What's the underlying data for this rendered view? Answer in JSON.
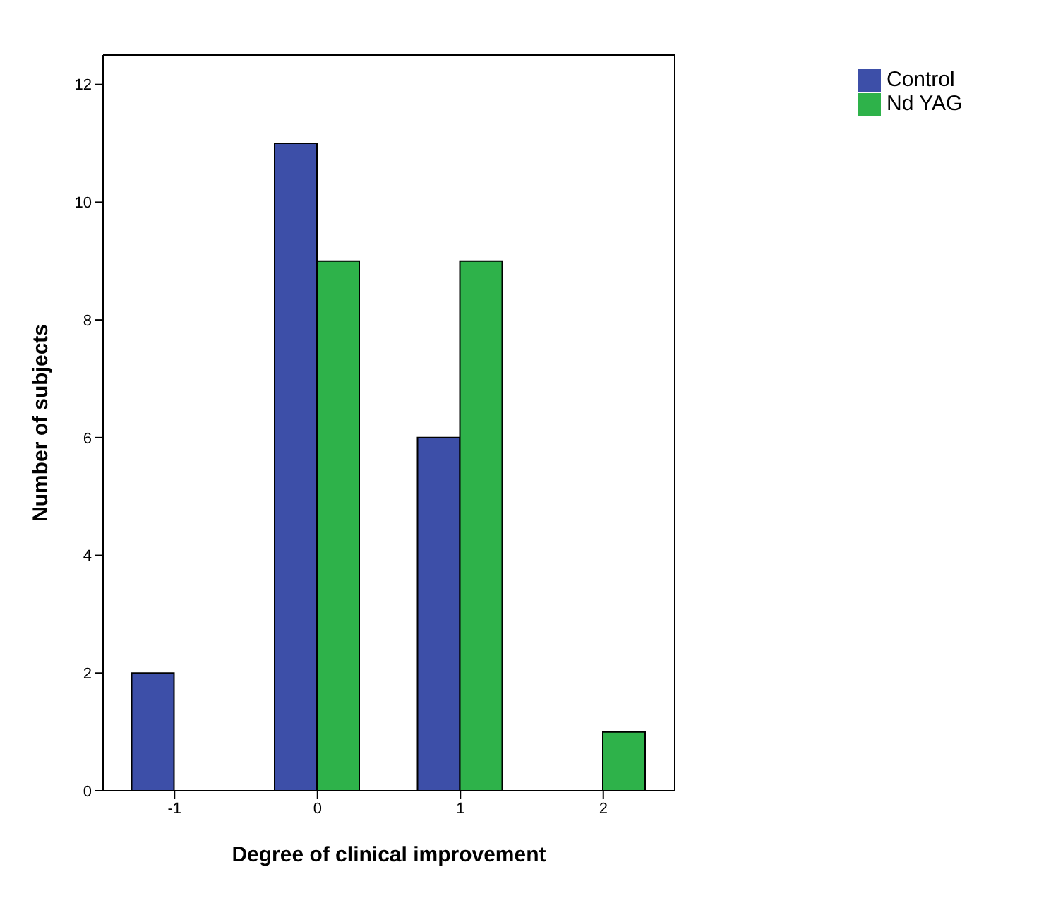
{
  "chart_data": {
    "type": "bar",
    "xlabel": "Degree of clinical improvement",
    "ylabel": "Number of subjects",
    "categories": [
      "-1",
      "0",
      "1",
      "2"
    ],
    "series": [
      {
        "name": "Control",
        "color": "#3d4fa8",
        "values": [
          2,
          11,
          6,
          0
        ]
      },
      {
        "name": "Nd YAG",
        "color": "#2eb24a",
        "values": [
          0,
          9,
          9,
          1
        ]
      }
    ],
    "ylim": [
      0,
      12.5
    ],
    "yticks": [
      0,
      2,
      4,
      6,
      8,
      10,
      12
    ],
    "grid": false,
    "legend": "top right"
  }
}
